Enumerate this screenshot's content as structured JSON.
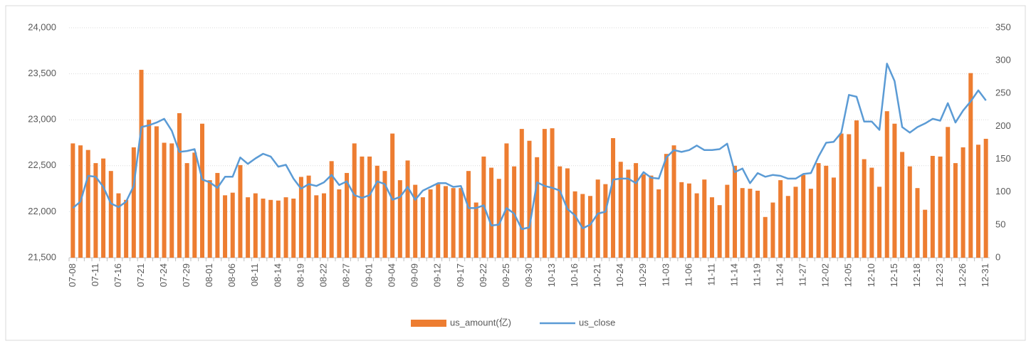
{
  "chart_data": {
    "type": "combo",
    "categories": [
      "07-08",
      null,
      null,
      "07-11",
      null,
      null,
      "07-16",
      null,
      null,
      "07-21",
      null,
      null,
      "07-24",
      null,
      null,
      "07-29",
      null,
      null,
      "08-01",
      null,
      null,
      "08-06",
      null,
      null,
      "08-11",
      null,
      null,
      "08-14",
      null,
      null,
      "08-19",
      null,
      null,
      "08-22",
      null,
      null,
      "08-27",
      null,
      null,
      "09-01",
      null,
      null,
      "09-04",
      null,
      null,
      "09-09",
      null,
      null,
      "09-12",
      null,
      null,
      "09-17",
      null,
      null,
      "09-22",
      null,
      null,
      "09-25",
      null,
      null,
      "09-30",
      null,
      null,
      "10-13",
      null,
      null,
      "10-16",
      null,
      null,
      "10-21",
      null,
      null,
      "10-24",
      null,
      null,
      "10-29",
      null,
      null,
      "11-03",
      null,
      null,
      "11-06",
      null,
      null,
      "11-11",
      null,
      null,
      "11-14",
      null,
      null,
      "11-19",
      null,
      null,
      "11-24",
      null,
      null,
      "11-27",
      null,
      null,
      "12-02",
      null,
      null,
      "12-05",
      null,
      null,
      "12-10",
      null,
      null,
      "12-15",
      null,
      null,
      "12-18",
      null,
      null,
      "12-23",
      null,
      null,
      "12-26",
      null,
      null,
      "12-31"
    ],
    "series": [
      {
        "name": "us_amount(亿)",
        "type": "bar",
        "axis": "y2",
        "color": "#ED7D31",
        "values": [
          174,
          171,
          164,
          144,
          151,
          132,
          98,
          88,
          168,
          286,
          210,
          200,
          175,
          174,
          220,
          144,
          160,
          204,
          118,
          129,
          95,
          99,
          141,
          92,
          98,
          90,
          88,
          87,
          92,
          90,
          123,
          125,
          95,
          98,
          147,
          104,
          129,
          174,
          154,
          154,
          140,
          132,
          189,
          118,
          148,
          111,
          92,
          104,
          112,
          109,
          106,
          106,
          132,
          84,
          154,
          137,
          120,
          174,
          139,
          196,
          178,
          153,
          196,
          197,
          139,
          136,
          101,
          97,
          94,
          119,
          112,
          182,
          146,
          134,
          144,
          127,
          125,
          104,
          158,
          171,
          115,
          113,
          98,
          119,
          92,
          80,
          111,
          140,
          106,
          105,
          102,
          62,
          84,
          118,
          94,
          108,
          126,
          105,
          144,
          140,
          122,
          189,
          188,
          209,
          150,
          137,
          108,
          223,
          204,
          161,
          139,
          106,
          73,
          155,
          154,
          199,
          144,
          168,
          281,
          172,
          181
        ]
      },
      {
        "name": "us_close",
        "type": "line",
        "axis": "y",
        "color": "#5B9BD5",
        "values": [
          22040,
          22110,
          22390,
          22380,
          22270,
          22090,
          22050,
          22110,
          22280,
          22920,
          22940,
          22970,
          23010,
          22880,
          22650,
          22660,
          22680,
          22350,
          22320,
          22260,
          22380,
          22380,
          22590,
          22520,
          22580,
          22630,
          22600,
          22490,
          22510,
          22360,
          22250,
          22300,
          22280,
          22320,
          22400,
          22290,
          22330,
          22180,
          22150,
          22180,
          22330,
          22300,
          22130,
          22160,
          22270,
          22130,
          22230,
          22270,
          22310,
          22310,
          22270,
          22280,
          22040,
          22040,
          22070,
          21850,
          21860,
          22040,
          21980,
          21810,
          21830,
          22320,
          22280,
          22260,
          22230,
          22030,
          21960,
          21820,
          21860,
          21980,
          22000,
          22350,
          22360,
          22360,
          22310,
          22430,
          22370,
          22360,
          22590,
          22670,
          22650,
          22670,
          22720,
          22670,
          22670,
          22680,
          22740,
          22430,
          22470,
          22310,
          22420,
          22380,
          22400,
          22390,
          22360,
          22360,
          22410,
          22420,
          22600,
          22750,
          22760,
          22860,
          23270,
          23250,
          22980,
          22980,
          22890,
          23610,
          23420,
          22920,
          22860,
          22920,
          22960,
          23010,
          22990,
          23180,
          22970,
          23100,
          23200,
          23320,
          23210
        ]
      }
    ],
    "ylim": [
      21500,
      24000
    ],
    "yticks": [
      {
        "value": 21500,
        "label": "21,500"
      },
      {
        "value": 22000,
        "label": "22,000"
      },
      {
        "value": 22500,
        "label": "22,500"
      },
      {
        "value": 23000,
        "label": "23,000"
      },
      {
        "value": 23500,
        "label": "23,500"
      },
      {
        "value": 24000,
        "label": "24,000"
      }
    ],
    "y2lim": [
      0,
      350
    ],
    "y2ticks": [
      0,
      50,
      100,
      150,
      200,
      250,
      300,
      350
    ],
    "grid": true,
    "legend": "bottom"
  }
}
